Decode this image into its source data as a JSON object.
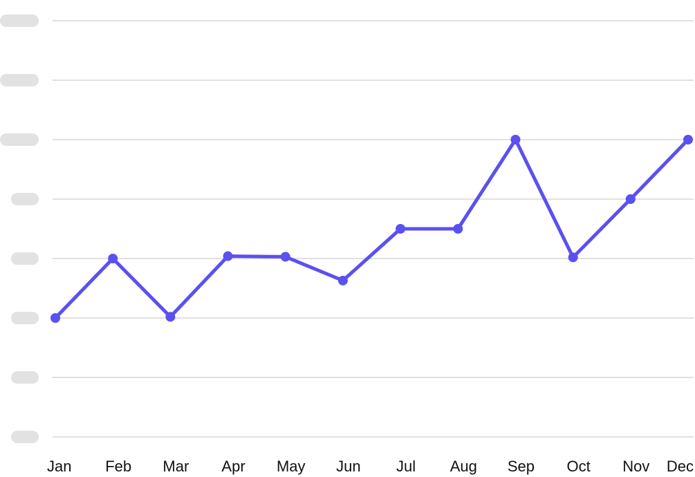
{
  "chart_data": {
    "type": "line",
    "categories": [
      "Jan",
      "Feb",
      "Mar",
      "Apr",
      "May",
      "Jun",
      "Jul",
      "Aug",
      "Sep",
      "Oct",
      "Nov",
      "Dec"
    ],
    "series": [
      {
        "values": [
          2.0,
          3.0,
          2.02,
          3.04,
          3.03,
          2.63,
          3.5,
          3.5,
          5.0,
          3.02,
          4.0,
          5.0
        ],
        "color": "#5b50f0"
      }
    ],
    "ylim": [
      0,
      7
    ],
    "yticks": [
      0,
      1,
      2,
      3,
      4,
      5,
      6,
      7
    ],
    "ytick_labels_obscured": true,
    "grid": "horizontal",
    "markers": true,
    "title": "",
    "xlabel": "",
    "ylabel": ""
  }
}
